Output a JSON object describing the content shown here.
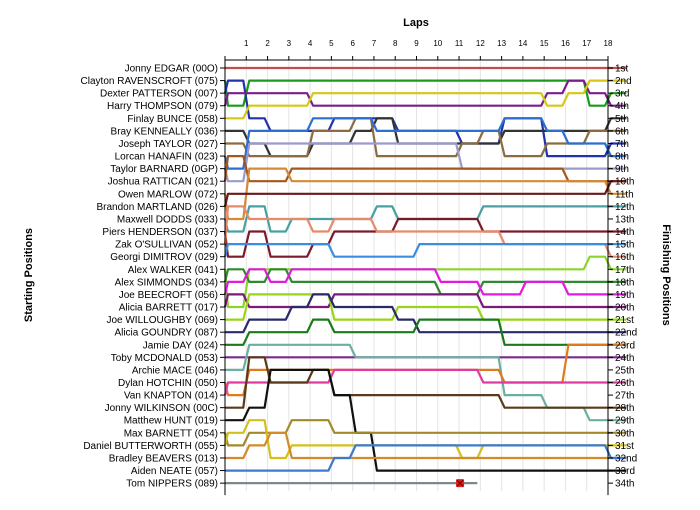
{
  "chart_data": {
    "type": "line",
    "title": "Laps",
    "ylabel": "Starting Positions",
    "y2label": "Finishing Positions",
    "x": [
      1,
      2,
      3,
      4,
      5,
      6,
      7,
      8,
      9,
      10,
      11,
      12,
      13,
      14,
      15,
      16,
      17,
      18
    ],
    "starting_order": [
      "Jonny EDGAR (00O)",
      "Clayton RAVENSCROFT (075)",
      "Dexter PATTERSON (007)",
      "Harry THOMPSON (079)",
      "Finlay BUNCE (058)",
      "Bray KENNEALLY (036)",
      "Joseph TAYLOR (027)",
      "Lorcan HANAFIN (023)",
      "Taylor BARNARD (0GP)",
      "Joshua RATTICAN (021)",
      "Owen MARLOW (072)",
      "Brandon MARTLAND (026)",
      "Maxwell DODDS (033)",
      "Piers HENDERSON (037)",
      "Zak O'SULLIVAN (052)",
      "Georgi DIMITROV (029)",
      "Alex WALKER (041)",
      "Alex SIMMONDS (034)",
      "Joe BEECROFT (056)",
      "Alicia BARRETT (017)",
      "Joe WILLOUGHBY (069)",
      "Alicia GOUNDRY (087)",
      "Jamie DAY (024)",
      "Toby MCDONALD (053)",
      "Archie MACE (046)",
      "Dylan HOTCHIN (050)",
      "Van KNAPTON (014)",
      "Jonny WILKINSON (00C)",
      "Matthew HUNT (019)",
      "Max BARNETT (054)",
      "Daniel BUTTERWORTH (055)",
      "Bradley BEAVERS (013)",
      "Aiden NEATE (057)",
      "Tom NIPPERS (089)"
    ],
    "finishing_labels": [
      "1st",
      "2nd",
      "3rd",
      "4th",
      "5th",
      "6th",
      "7th",
      "8th",
      "9th",
      "10th",
      "11th",
      "12th",
      "13th",
      "14th",
      "15th",
      "16th",
      "17th",
      "18th",
      "19th",
      "20th",
      "21st",
      "22nd",
      "23rd",
      "24th",
      "25th",
      "26th",
      "27th",
      "28th",
      "29th",
      "30th",
      "31st",
      "32nd",
      "33rd",
      "34th"
    ],
    "series": [
      {
        "color": "#c0504d",
        "start": 1,
        "positions": [
          1,
          1,
          1,
          1,
          1,
          1,
          1,
          1,
          1,
          1,
          1,
          1,
          1,
          1,
          1,
          1,
          1,
          1,
          1
        ]
      },
      {
        "color": "#1a9a1a",
        "start": 2,
        "positions": [
          4,
          2,
          2,
          2,
          2,
          2,
          2,
          2,
          2,
          2,
          2,
          2,
          2,
          2,
          2,
          2,
          2,
          4,
          3
        ]
      },
      {
        "color": "#2233aa",
        "start": 3,
        "positions": [
          2,
          5,
          6,
          6,
          6,
          5,
          5,
          5,
          6,
          6,
          6,
          7,
          7,
          5,
          5,
          8,
          8,
          8,
          7
        ]
      },
      {
        "color": "#7a1f8a",
        "start": 4,
        "positions": [
          3,
          3,
          3,
          3,
          4,
          4,
          4,
          4,
          4,
          4,
          4,
          4,
          4,
          4,
          4,
          3,
          2,
          3,
          4
        ]
      },
      {
        "color": "#d4c814",
        "start": 5,
        "positions": [
          5,
          4,
          4,
          4,
          3,
          3,
          3,
          3,
          3,
          3,
          3,
          3,
          3,
          3,
          3,
          4,
          3,
          2,
          2
        ]
      },
      {
        "color": "#333333",
        "start": 6,
        "positions": [
          6,
          7,
          8,
          8,
          7,
          7,
          6,
          5,
          7,
          7,
          7,
          7,
          7,
          6,
          6,
          6,
          6,
          6,
          5
        ]
      },
      {
        "color": "#8b6c42",
        "start": 7,
        "positions": [
          7,
          8,
          8,
          8,
          6,
          6,
          5,
          8,
          8,
          8,
          8,
          7,
          6,
          8,
          8,
          7,
          7,
          6,
          6
        ]
      },
      {
        "color": "#2b6fd1",
        "start": 8,
        "positions": [
          9,
          6,
          6,
          6,
          5,
          5,
          5,
          6,
          6,
          6,
          6,
          6,
          6,
          5,
          5,
          6,
          7,
          7,
          8
        ]
      },
      {
        "color": "#9a9acb",
        "start": 9,
        "positions": [
          10,
          7,
          7,
          7,
          7,
          7,
          7,
          7,
          7,
          7,
          7,
          9,
          9,
          9,
          9,
          9,
          9,
          9,
          9
        ]
      },
      {
        "color": "#a5561c",
        "start": 10,
        "positions": [
          8,
          10,
          10,
          9,
          9,
          9,
          9,
          9,
          9,
          9,
          9,
          9,
          9,
          9,
          9,
          9,
          10,
          10,
          10
        ]
      },
      {
        "color": "#d48a36",
        "start": 11,
        "positions": [
          13,
          9,
          9,
          10,
          10,
          10,
          10,
          10,
          10,
          10,
          10,
          10,
          10,
          10,
          10,
          10,
          10,
          10,
          11
        ]
      },
      {
        "color": "#6a1a1a",
        "start": 12,
        "positions": [
          11,
          11,
          11,
          11,
          11,
          11,
          11,
          11,
          11,
          11,
          11,
          11,
          11,
          11,
          11,
          11,
          11,
          11,
          10
        ]
      },
      {
        "color": "#4aa0a0",
        "start": 13,
        "positions": [
          14,
          12,
          14,
          13,
          13,
          13,
          13,
          12,
          13,
          13,
          13,
          13,
          12,
          12,
          12,
          12,
          12,
          12,
          12
        ]
      },
      {
        "color": "#7a1a2a",
        "start": 14,
        "positions": [
          16,
          14,
          16,
          16,
          15,
          14,
          14,
          14,
          13,
          13,
          13,
          13,
          14,
          14,
          14,
          14,
          14,
          14,
          14
        ]
      },
      {
        "color": "#e88a6a",
        "start": 15,
        "positions": [
          12,
          13,
          13,
          13,
          14,
          13,
          13,
          14,
          14,
          14,
          14,
          14,
          14,
          15,
          15,
          15,
          15,
          15,
          16
        ]
      },
      {
        "color": "#3a8ee0",
        "start": 16,
        "positions": [
          15,
          15,
          15,
          15,
          15,
          16,
          16,
          16,
          16,
          15,
          15,
          15,
          15,
          15,
          15,
          15,
          15,
          15,
          15
        ]
      },
      {
        "color": "#8bd42a",
        "start": 17,
        "positions": [
          20,
          17,
          17,
          17,
          17,
          17,
          17,
          17,
          17,
          17,
          17,
          17,
          17,
          17,
          17,
          17,
          17,
          16,
          17
        ]
      },
      {
        "color": "#2f8a2f",
        "start": 18,
        "positions": [
          17,
          18,
          17,
          18,
          18,
          18,
          18,
          18,
          18,
          18,
          19,
          19,
          18,
          18,
          18,
          18,
          18,
          18,
          18
        ]
      },
      {
        "color": "#e01ae0",
        "start": 19,
        "positions": [
          18,
          17,
          18,
          17,
          17,
          17,
          17,
          17,
          17,
          17,
          18,
          18,
          19,
          19,
          18,
          18,
          19,
          19,
          19
        ]
      },
      {
        "color": "#7a1a7a",
        "start": 20,
        "positions": [
          19,
          20,
          20,
          20,
          20,
          19,
          19,
          19,
          19,
          19,
          19,
          19,
          20,
          20,
          20,
          20,
          20,
          20,
          20
        ]
      },
      {
        "color": "#9ad41a",
        "start": 21,
        "positions": [
          21,
          19,
          19,
          19,
          19,
          21,
          21,
          21,
          20,
          20,
          20,
          20,
          21,
          21,
          21,
          21,
          21,
          21,
          21
        ]
      },
      {
        "color": "#2a2a6a",
        "start": 22,
        "positions": [
          22,
          21,
          21,
          20,
          19,
          20,
          20,
          20,
          21,
          22,
          22,
          22,
          22,
          22,
          22,
          22,
          22,
          22,
          22
        ]
      },
      {
        "color": "#1a7a1a",
        "start": 23,
        "positions": [
          23,
          22,
          22,
          22,
          21,
          22,
          22,
          22,
          22,
          21,
          21,
          21,
          21,
          23,
          23,
          23,
          23,
          23,
          23
        ]
      },
      {
        "color": "#7a2a8a",
        "start": 24,
        "positions": [
          24,
          24,
          24,
          24,
          24,
          24,
          24,
          24,
          24,
          24,
          24,
          24,
          24,
          24,
          24,
          24,
          24,
          24,
          24
        ]
      },
      {
        "color": "#6ab0a0",
        "start": 25,
        "positions": [
          25,
          23,
          23,
          23,
          23,
          23,
          24,
          24,
          24,
          24,
          24,
          24,
          24,
          27,
          27,
          28,
          28,
          29,
          29
        ]
      },
      {
        "color": "#e07a1a",
        "start": 26,
        "positions": [
          27,
          25,
          25,
          25,
          25,
          25,
          25,
          25,
          25,
          25,
          25,
          25,
          25,
          26,
          26,
          26,
          23,
          23,
          23
        ]
      },
      {
        "color": "#e03aa0",
        "start": 27,
        "positions": [
          26,
          26,
          26,
          26,
          26,
          25,
          25,
          25,
          25,
          25,
          25,
          25,
          26,
          26,
          26,
          26,
          26,
          26,
          26
        ]
      },
      {
        "color": "#5a3a1a",
        "start": 28,
        "positions": [
          28,
          24,
          26,
          26,
          25,
          27,
          27,
          27,
          27,
          27,
          27,
          27,
          27,
          28,
          28,
          28,
          28,
          28,
          28
        ]
      },
      {
        "color": "#101010",
        "start": 29,
        "positions": [
          29,
          28,
          25,
          25,
          25,
          27,
          30,
          33,
          33,
          33,
          33,
          33,
          33,
          33,
          33,
          33,
          33,
          33,
          33
        ]
      },
      {
        "color": "#a08a2a",
        "start": 30,
        "positions": [
          31,
          30,
          30,
          29,
          29,
          30,
          30,
          30,
          30,
          30,
          30,
          30,
          30,
          30,
          30,
          30,
          30,
          30,
          30
        ]
      },
      {
        "color": "#d4c01a",
        "start": 31,
        "positions": [
          30,
          29,
          32,
          31,
          31,
          31,
          31,
          31,
          31,
          31,
          31,
          32,
          31,
          31,
          31,
          31,
          31,
          31,
          31
        ]
      },
      {
        "color": "#d48a2a",
        "start": 32,
        "positions": [
          32,
          31,
          30,
          32,
          32,
          32,
          32,
          32,
          32,
          32,
          32,
          32,
          32,
          32,
          32,
          32,
          32,
          32,
          32
        ]
      },
      {
        "color": "#3a7ad1",
        "start": 33,
        "positions": [
          33,
          33,
          33,
          33,
          33,
          32,
          31,
          31,
          31,
          31,
          31,
          31,
          31,
          31,
          31,
          31,
          31,
          31,
          32
        ]
      },
      {
        "color": "#7a8a8a",
        "start": 34,
        "positions": [
          34,
          34,
          34,
          34,
          34,
          34,
          34,
          34,
          34,
          34,
          34,
          34
        ],
        "retired_after_lap": 11
      }
    ]
  }
}
